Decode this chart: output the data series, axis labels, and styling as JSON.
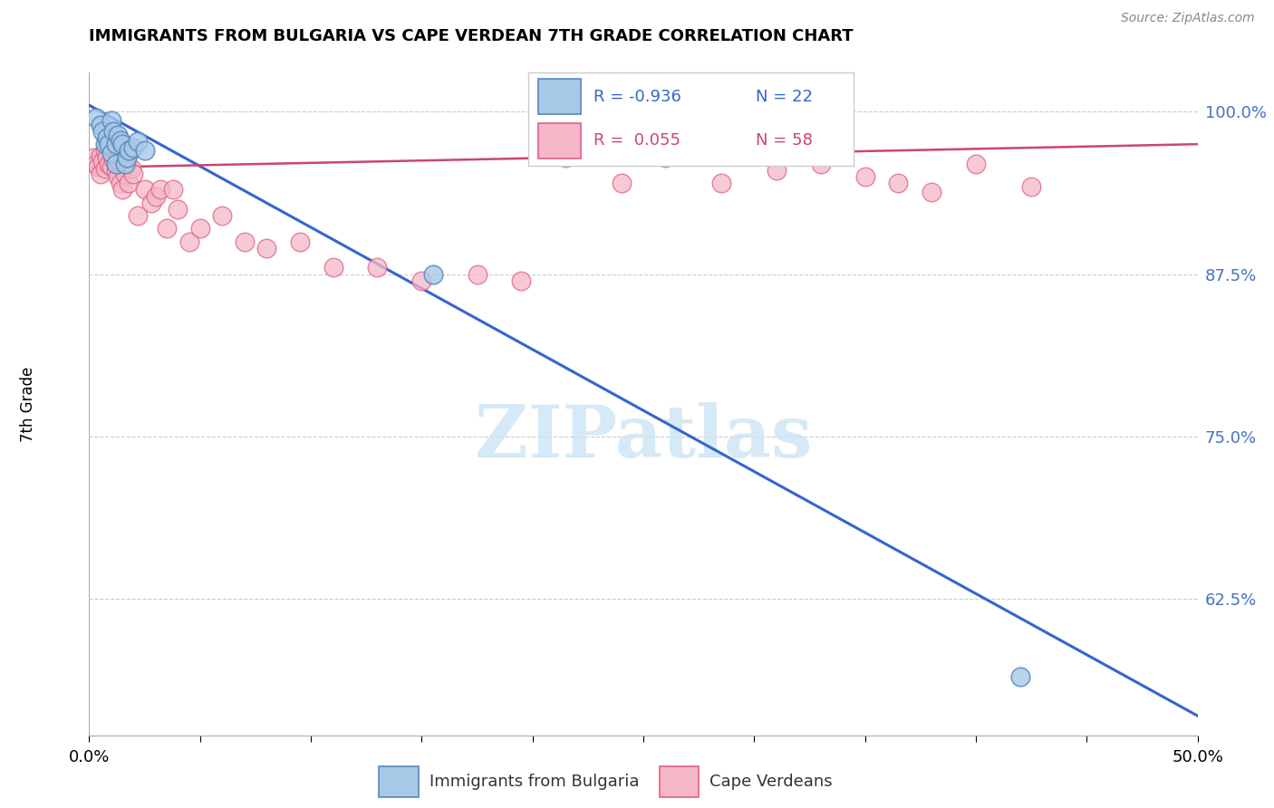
{
  "title": "IMMIGRANTS FROM BULGARIA VS CAPE VERDEAN 7TH GRADE CORRELATION CHART",
  "source": "Source: ZipAtlas.com",
  "ylabel": "7th Grade",
  "xlim": [
    0.0,
    0.5
  ],
  "ylim": [
    0.52,
    1.03
  ],
  "yticks": [
    0.625,
    0.75,
    0.875,
    1.0
  ],
  "ytick_labels": [
    "62.5%",
    "75.0%",
    "87.5%",
    "100.0%"
  ],
  "xticks": [
    0.0,
    0.05,
    0.1,
    0.15,
    0.2,
    0.25,
    0.3,
    0.35,
    0.4,
    0.45,
    0.5
  ],
  "xtick_labels": [
    "0.0%",
    "",
    "",
    "",
    "",
    "",
    "",
    "",
    "",
    "",
    "50.0%"
  ],
  "color_bulgaria": "#a8c8e8",
  "color_cape_verde": "#f4b8c8",
  "color_edge_bulgaria": "#5588bb",
  "color_edge_cape_verde": "#e06080",
  "color_line_bulgaria": "#3366cc",
  "color_line_cape_verde": "#cc4477",
  "watermark_color": "#cce4f4",
  "bulgaria_scatter_x": [
    0.003,
    0.005,
    0.006,
    0.007,
    0.008,
    0.009,
    0.01,
    0.01,
    0.011,
    0.012,
    0.012,
    0.013,
    0.014,
    0.015,
    0.016,
    0.017,
    0.018,
    0.02,
    0.022,
    0.025,
    0.155,
    0.42
  ],
  "bulgaria_scatter_y": [
    0.995,
    0.99,
    0.985,
    0.975,
    0.98,
    0.975,
    0.968,
    0.993,
    0.985,
    0.975,
    0.96,
    0.982,
    0.978,
    0.975,
    0.96,
    0.965,
    0.97,
    0.972,
    0.977,
    0.97,
    0.875,
    0.565
  ],
  "cape_verde_scatter_x": [
    0.002,
    0.003,
    0.004,
    0.005,
    0.005,
    0.006,
    0.007,
    0.007,
    0.008,
    0.008,
    0.009,
    0.01,
    0.011,
    0.011,
    0.012,
    0.012,
    0.013,
    0.013,
    0.014,
    0.014,
    0.015,
    0.015,
    0.016,
    0.017,
    0.018,
    0.018,
    0.019,
    0.02,
    0.022,
    0.025,
    0.028,
    0.03,
    0.032,
    0.035,
    0.038,
    0.04,
    0.045,
    0.05,
    0.06,
    0.07,
    0.08,
    0.095,
    0.11,
    0.13,
    0.15,
    0.175,
    0.195,
    0.215,
    0.24,
    0.26,
    0.285,
    0.31,
    0.33,
    0.35,
    0.365,
    0.38,
    0.4,
    0.425
  ],
  "cape_verde_scatter_y": [
    0.965,
    0.96,
    0.958,
    0.952,
    0.966,
    0.962,
    0.956,
    0.97,
    0.965,
    0.975,
    0.96,
    0.958,
    0.963,
    0.972,
    0.968,
    0.955,
    0.95,
    0.963,
    0.96,
    0.945,
    0.94,
    0.958,
    0.952,
    0.96,
    0.968,
    0.945,
    0.956,
    0.952,
    0.92,
    0.94,
    0.93,
    0.935,
    0.94,
    0.91,
    0.94,
    0.925,
    0.9,
    0.91,
    0.92,
    0.9,
    0.895,
    0.9,
    0.88,
    0.88,
    0.87,
    0.875,
    0.87,
    0.965,
    0.945,
    0.965,
    0.945,
    0.955,
    0.96,
    0.95,
    0.945,
    0.938,
    0.96,
    0.942
  ],
  "blue_line_x0": 0.0,
  "blue_line_y0": 1.005,
  "blue_line_x1": 0.5,
  "blue_line_y1": 0.535,
  "pink_line_x0": 0.0,
  "pink_line_y0": 0.957,
  "pink_line_x1": 0.5,
  "pink_line_y1": 0.975
}
